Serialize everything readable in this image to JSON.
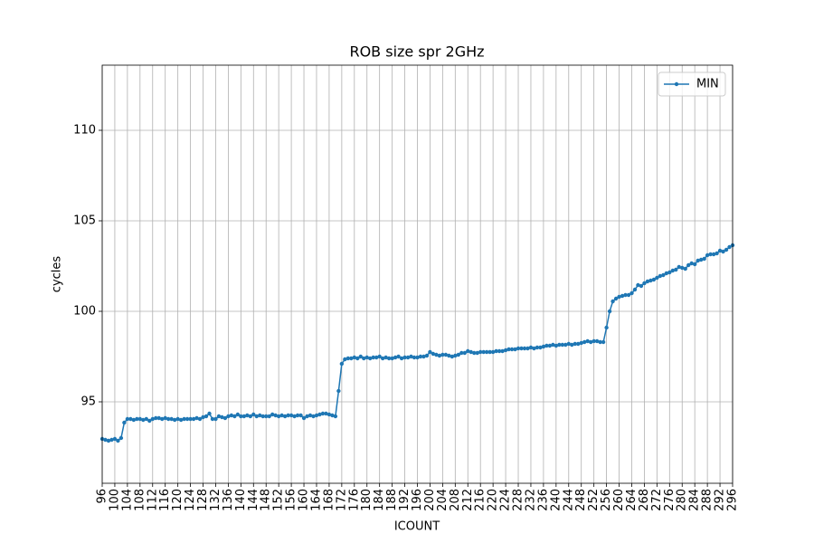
{
  "chart_data": {
    "type": "line",
    "title": "ROB size spr 2GHz",
    "xlabel": "ICOUNT",
    "ylabel": "cycles",
    "x": [
      96,
      97,
      98,
      99,
      100,
      101,
      102,
      103,
      104,
      105,
      106,
      107,
      108,
      109,
      110,
      111,
      112,
      113,
      114,
      115,
      116,
      117,
      118,
      119,
      120,
      121,
      122,
      123,
      124,
      125,
      126,
      127,
      128,
      129,
      130,
      131,
      132,
      133,
      134,
      135,
      136,
      137,
      138,
      139,
      140,
      141,
      142,
      143,
      144,
      145,
      146,
      147,
      148,
      149,
      150,
      151,
      152,
      153,
      154,
      155,
      156,
      157,
      158,
      159,
      160,
      161,
      162,
      163,
      164,
      165,
      166,
      167,
      168,
      169,
      170,
      171,
      172,
      173,
      174,
      175,
      176,
      177,
      178,
      179,
      180,
      181,
      182,
      183,
      184,
      185,
      186,
      187,
      188,
      189,
      190,
      191,
      192,
      193,
      194,
      195,
      196,
      197,
      198,
      199,
      200,
      201,
      202,
      203,
      204,
      205,
      206,
      207,
      208,
      209,
      210,
      211,
      212,
      213,
      214,
      215,
      216,
      217,
      218,
      219,
      220,
      221,
      222,
      223,
      224,
      225,
      226,
      227,
      228,
      229,
      230,
      231,
      232,
      233,
      234,
      235,
      236,
      237,
      238,
      239,
      240,
      241,
      242,
      243,
      244,
      245,
      246,
      247,
      248,
      249,
      250,
      251,
      252,
      253,
      254,
      255,
      256,
      257,
      258,
      259,
      260,
      261,
      262,
      263,
      264,
      265,
      266,
      267,
      268,
      269,
      270,
      271,
      272,
      273,
      274,
      275,
      276,
      277,
      278,
      279,
      280,
      281,
      282,
      283,
      284,
      285,
      286,
      287,
      288,
      289,
      290,
      291,
      292,
      293,
      294,
      295,
      296
    ],
    "series": [
      {
        "name": "MIN",
        "color": "#1f77b4",
        "values": [
          92.95,
          92.9,
          92.85,
          92.9,
          92.95,
          92.85,
          93.0,
          93.85,
          94.05,
          94.05,
          94.0,
          94.05,
          94.05,
          94.0,
          94.05,
          93.95,
          94.05,
          94.1,
          94.1,
          94.05,
          94.1,
          94.05,
          94.05,
          94.0,
          94.05,
          94.0,
          94.05,
          94.05,
          94.05,
          94.05,
          94.1,
          94.05,
          94.15,
          94.2,
          94.35,
          94.05,
          94.05,
          94.2,
          94.15,
          94.1,
          94.2,
          94.25,
          94.2,
          94.3,
          94.2,
          94.2,
          94.25,
          94.2,
          94.3,
          94.2,
          94.25,
          94.2,
          94.2,
          94.2,
          94.3,
          94.25,
          94.2,
          94.25,
          94.2,
          94.25,
          94.25,
          94.2,
          94.25,
          94.25,
          94.1,
          94.2,
          94.25,
          94.2,
          94.25,
          94.3,
          94.35,
          94.35,
          94.3,
          94.25,
          94.2,
          95.6,
          97.1,
          97.35,
          97.4,
          97.4,
          97.45,
          97.4,
          97.5,
          97.4,
          97.45,
          97.4,
          97.45,
          97.45,
          97.5,
          97.4,
          97.45,
          97.4,
          97.4,
          97.45,
          97.5,
          97.4,
          97.45,
          97.45,
          97.5,
          97.45,
          97.45,
          97.5,
          97.5,
          97.55,
          97.75,
          97.65,
          97.6,
          97.55,
          97.6,
          97.6,
          97.55,
          97.5,
          97.55,
          97.6,
          97.7,
          97.7,
          97.8,
          97.75,
          97.7,
          97.7,
          97.75,
          97.75,
          97.75,
          97.75,
          97.75,
          97.8,
          97.8,
          97.8,
          97.85,
          97.9,
          97.9,
          97.9,
          97.95,
          97.95,
          97.95,
          97.95,
          98.0,
          97.95,
          98.0,
          98.0,
          98.05,
          98.1,
          98.1,
          98.15,
          98.1,
          98.15,
          98.15,
          98.15,
          98.2,
          98.15,
          98.2,
          98.2,
          98.25,
          98.3,
          98.35,
          98.3,
          98.35,
          98.35,
          98.3,
          98.3,
          99.1,
          100.0,
          100.55,
          100.7,
          100.8,
          100.85,
          100.9,
          100.9,
          101.0,
          101.2,
          101.45,
          101.4,
          101.55,
          101.65,
          101.7,
          101.75,
          101.85,
          101.95,
          102.0,
          102.1,
          102.15,
          102.25,
          102.3,
          102.45,
          102.4,
          102.35,
          102.55,
          102.65,
          102.6,
          102.8,
          102.85,
          102.9,
          103.1,
          103.15,
          103.15,
          103.2,
          103.35,
          103.3,
          103.4,
          103.55,
          103.65
        ]
      }
    ],
    "xlim": [
      96,
      296
    ],
    "xticks": [
      96,
      100,
      104,
      108,
      112,
      116,
      120,
      124,
      128,
      132,
      136,
      140,
      144,
      148,
      152,
      156,
      160,
      164,
      168,
      172,
      176,
      180,
      184,
      188,
      192,
      196,
      200,
      204,
      208,
      212,
      216,
      220,
      224,
      228,
      232,
      236,
      240,
      244,
      248,
      252,
      256,
      260,
      264,
      268,
      272,
      276,
      280,
      284,
      288,
      292,
      296
    ],
    "ylim": [
      90.5,
      113.6
    ],
    "yticks": [
      95,
      100,
      105,
      110
    ],
    "grid": true,
    "legend": "upper right"
  }
}
